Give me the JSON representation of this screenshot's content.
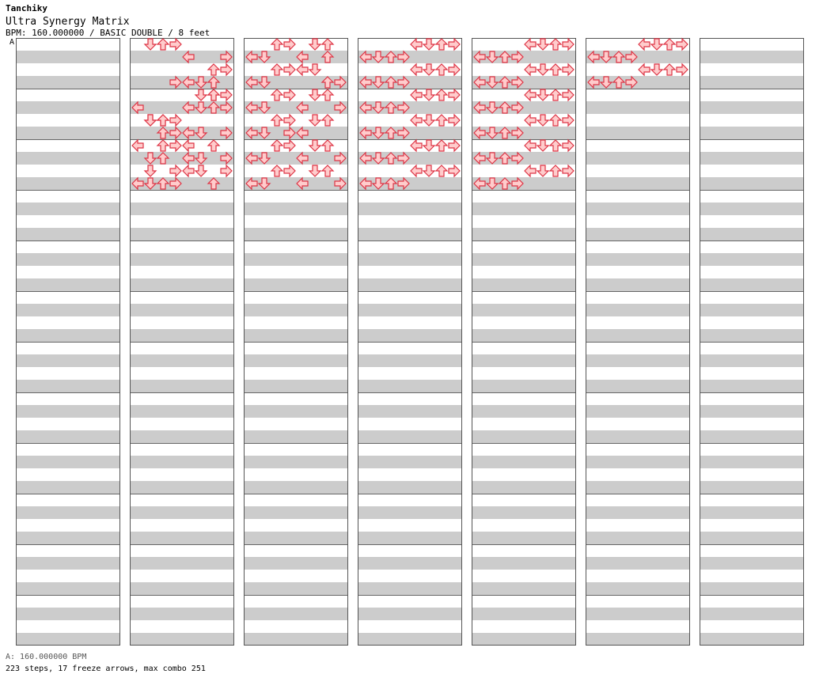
{
  "song": {
    "artist": "Tanchiky",
    "title": "Ultra Synergy Matrix",
    "meta": "BPM: 160.000000 / BASIC DOUBLE / 8 feet",
    "bpm_marker": "A"
  },
  "footer": {
    "bpm_line": "A: 160.000000 BPM",
    "stats": "223 steps, 17 freeze arrows, max combo 251"
  },
  "colors": {
    "note_fill": "#ffcccc",
    "note_stroke": "#dd3344",
    "freeze_fill": "#ccffcc",
    "freeze_stroke": "#33aa55",
    "special_fill": "#99ccff",
    "special_stroke": "#3366cc",
    "stripe": "#cccccc"
  },
  "chart_data": {
    "type": "step-chart",
    "columns": 7,
    "measures_per_column": 12,
    "lanes": [
      "L1",
      "D1",
      "U1",
      "R1",
      "L2",
      "D2",
      "U2",
      "R2"
    ],
    "notes": [
      [
        1,
        0,
        1
      ],
      [
        1,
        0,
        2
      ],
      [
        1,
        0,
        3
      ],
      [
        1,
        1,
        4
      ],
      [
        1,
        1,
        7
      ],
      [
        1,
        2,
        6
      ],
      [
        1,
        2,
        7
      ],
      [
        1,
        3,
        5
      ],
      [
        1,
        3,
        4
      ],
      [
        1,
        3,
        6
      ],
      [
        1,
        3,
        3
      ],
      [
        1,
        4,
        6
      ],
      [
        1,
        4,
        5
      ],
      [
        1,
        4,
        7
      ],
      [
        1,
        4,
        6
      ],
      [
        1,
        5,
        0
      ],
      [
        1,
        5,
        4
      ],
      [
        1,
        5,
        5
      ],
      [
        1,
        5,
        6
      ],
      [
        1,
        5,
        7
      ],
      [
        1,
        6,
        1
      ],
      [
        1,
        6,
        2
      ],
      [
        1,
        6,
        3
      ],
      [
        1,
        6,
        1
      ],
      [
        1,
        6,
        2
      ],
      [
        1,
        7,
        2
      ],
      [
        1,
        7,
        7
      ],
      [
        1,
        7,
        5
      ],
      [
        1,
        7,
        3
      ],
      [
        1,
        7,
        4
      ],
      [
        1,
        8,
        0
      ],
      [
        1,
        8,
        3
      ],
      [
        1,
        8,
        4
      ],
      [
        1,
        8,
        2
      ],
      [
        1,
        8,
        6
      ],
      [
        1,
        9,
        2
      ],
      [
        1,
        9,
        5
      ],
      [
        1,
        9,
        7
      ],
      [
        1,
        9,
        1
      ],
      [
        1,
        9,
        4
      ],
      [
        1,
        10,
        3
      ],
      [
        1,
        10,
        4
      ],
      [
        1,
        10,
        1
      ],
      [
        1,
        10,
        5
      ],
      [
        1,
        10,
        7
      ],
      [
        1,
        11,
        1
      ],
      [
        1,
        11,
        2
      ],
      [
        1,
        11,
        6
      ],
      [
        1,
        11,
        0
      ],
      [
        1,
        11,
        3
      ],
      [
        2,
        0,
        2
      ],
      [
        2,
        0,
        3
      ],
      [
        2,
        0,
        5
      ],
      [
        2,
        0,
        6
      ],
      [
        2,
        1,
        4
      ],
      [
        2,
        1,
        0
      ],
      [
        2,
        1,
        1
      ],
      [
        2,
        1,
        6
      ],
      [
        2,
        2,
        2
      ],
      [
        2,
        2,
        5
      ],
      [
        2,
        2,
        3
      ],
      [
        2,
        2,
        4
      ],
      [
        2,
        3,
        0
      ],
      [
        2,
        3,
        6
      ],
      [
        2,
        3,
        1
      ],
      [
        2,
        3,
        7
      ],
      [
        2,
        4,
        5
      ],
      [
        2,
        4,
        3
      ],
      [
        2,
        4,
        2
      ],
      [
        2,
        4,
        6
      ],
      [
        2,
        5,
        1
      ],
      [
        2,
        5,
        7
      ],
      [
        2,
        5,
        0
      ],
      [
        2,
        5,
        4
      ],
      [
        2,
        6,
        2
      ],
      [
        2,
        6,
        6
      ],
      [
        2,
        6,
        5
      ],
      [
        2,
        6,
        3
      ],
      [
        2,
        7,
        0
      ],
      [
        2,
        7,
        3
      ],
      [
        2,
        7,
        1
      ],
      [
        2,
        7,
        4
      ],
      [
        2,
        8,
        3
      ],
      [
        2,
        8,
        5
      ],
      [
        2,
        8,
        2
      ],
      [
        2,
        8,
        6
      ],
      [
        2,
        9,
        4
      ],
      [
        2,
        9,
        0
      ],
      [
        2,
        9,
        7
      ],
      [
        2,
        9,
        1
      ],
      [
        2,
        10,
        2
      ],
      [
        2,
        10,
        6
      ],
      [
        2,
        10,
        3
      ],
      [
        2,
        10,
        5
      ],
      [
        2,
        11,
        1
      ],
      [
        2,
        11,
        4
      ],
      [
        2,
        11,
        0
      ],
      [
        2,
        11,
        7
      ],
      [
        3,
        0,
        6
      ],
      [
        3,
        0,
        4
      ],
      [
        3,
        0,
        7
      ],
      [
        3,
        0,
        5
      ],
      [
        3,
        1,
        2
      ],
      [
        3,
        1,
        1
      ],
      [
        3,
        1,
        3
      ],
      [
        3,
        1,
        0
      ],
      [
        3,
        2,
        5
      ],
      [
        3,
        2,
        6
      ],
      [
        3,
        2,
        4
      ],
      [
        3,
        2,
        7
      ],
      [
        3,
        3,
        1
      ],
      [
        3,
        3,
        3
      ],
      [
        3,
        3,
        2
      ],
      [
        3,
        3,
        0
      ],
      [
        3,
        4,
        4
      ],
      [
        3,
        4,
        7
      ],
      [
        3,
        4,
        6
      ],
      [
        3,
        4,
        5
      ],
      [
        3,
        5,
        0
      ],
      [
        3,
        5,
        2
      ],
      [
        3,
        5,
        1
      ],
      [
        3,
        5,
        3
      ],
      [
        3,
        6,
        6
      ],
      [
        3,
        6,
        5
      ],
      [
        3,
        6,
        7
      ],
      [
        3,
        6,
        4
      ],
      [
        3,
        7,
        3
      ],
      [
        3,
        7,
        0
      ],
      [
        3,
        7,
        2
      ],
      [
        3,
        7,
        1
      ],
      [
        3,
        8,
        5
      ],
      [
        3,
        8,
        4
      ],
      [
        3,
        8,
        6
      ],
      [
        3,
        8,
        7
      ],
      [
        3,
        9,
        2
      ],
      [
        3,
        9,
        3
      ],
      [
        3,
        9,
        1
      ],
      [
        3,
        9,
        0
      ],
      [
        3,
        10,
        7
      ],
      [
        3,
        10,
        6
      ],
      [
        3,
        10,
        4
      ],
      [
        3,
        10,
        5
      ],
      [
        3,
        11,
        0
      ],
      [
        3,
        11,
        1
      ],
      [
        3,
        11,
        3
      ],
      [
        3,
        11,
        2
      ],
      [
        4,
        0,
        4
      ],
      [
        4,
        0,
        5
      ],
      [
        4,
        0,
        6
      ],
      [
        4,
        0,
        7
      ],
      [
        4,
        1,
        3
      ],
      [
        4,
        1,
        2
      ],
      [
        4,
        1,
        1
      ],
      [
        4,
        1,
        0
      ],
      [
        4,
        2,
        4
      ],
      [
        4,
        2,
        6
      ],
      [
        4,
        2,
        5
      ],
      [
        4,
        2,
        7
      ],
      [
        4,
        3,
        0
      ],
      [
        4,
        3,
        2
      ],
      [
        4,
        3,
        1
      ],
      [
        4,
        3,
        3
      ],
      [
        4,
        4,
        7
      ],
      [
        4,
        4,
        5
      ],
      [
        4,
        4,
        4
      ],
      [
        4,
        4,
        6
      ],
      [
        4,
        5,
        3
      ],
      [
        4,
        5,
        1
      ],
      [
        4,
        5,
        0
      ],
      [
        4,
        5,
        2
      ],
      [
        4,
        6,
        6
      ],
      [
        4,
        6,
        4
      ],
      [
        4,
        6,
        7
      ],
      [
        4,
        6,
        5
      ],
      [
        4,
        7,
        2
      ],
      [
        4,
        7,
        0
      ],
      [
        4,
        7,
        3
      ],
      [
        4,
        7,
        1
      ],
      [
        4,
        8,
        5
      ],
      [
        4,
        8,
        7
      ],
      [
        4,
        8,
        6
      ],
      [
        4,
        8,
        4
      ],
      [
        4,
        9,
        1
      ],
      [
        4,
        9,
        3
      ],
      [
        4,
        9,
        0
      ],
      [
        4,
        9,
        2
      ],
      [
        4,
        10,
        6
      ],
      [
        4,
        10,
        5
      ],
      [
        4,
        10,
        4
      ],
      [
        4,
        10,
        7
      ],
      [
        4,
        11,
        0
      ],
      [
        4,
        11,
        2
      ],
      [
        4,
        11,
        1
      ],
      [
        4,
        11,
        3
      ],
      [
        5,
        0,
        4
      ],
      [
        5,
        0,
        5
      ],
      [
        5,
        0,
        6
      ],
      [
        5,
        0,
        7
      ],
      [
        5,
        1,
        2
      ],
      [
        5,
        1,
        1
      ],
      [
        5,
        1,
        0
      ],
      [
        5,
        1,
        3
      ],
      [
        5,
        2,
        4
      ],
      [
        5,
        2,
        6
      ],
      [
        5,
        2,
        5
      ],
      [
        5,
        2,
        7
      ],
      [
        5,
        3,
        3
      ],
      [
        5,
        3,
        1
      ],
      [
        5,
        3,
        2
      ],
      [
        5,
        3,
        0
      ]
    ]
  }
}
